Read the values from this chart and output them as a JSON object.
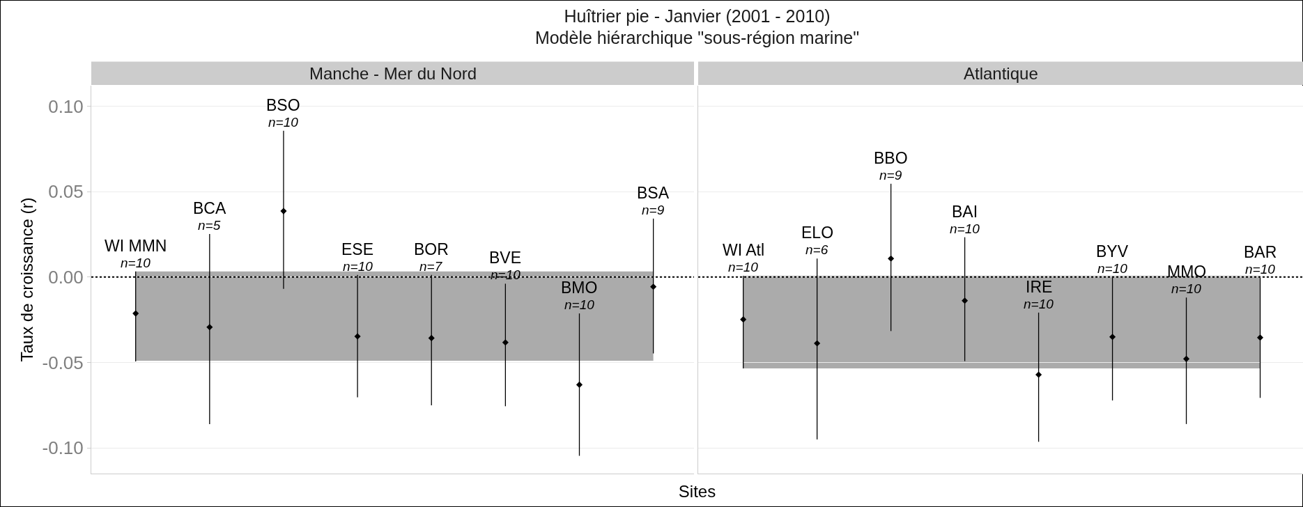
{
  "chart_data": [
    {
      "type": "scatter",
      "title": "Manche - Mer du Nord",
      "annotations": [
        "Huîtrier pie - Janvier (2001 - 2010)",
        "Modèle hiérarchique \"sous-région marine\"",
        {
          "text": "n=10",
          "x": "WI MMN",
          "y": 0.0033
        },
        {
          "text": "n=5",
          "x": "BCA",
          "y": 0.0252
        },
        {
          "text": "n=10",
          "x": "BSO",
          "y": 0.0856
        },
        {
          "text": "n=10",
          "x": "ESE",
          "y": 0.0013
        },
        {
          "text": "n=7",
          "x": "BOR",
          "y": 0.0013
        },
        {
          "text": "n=10",
          "x": "BVE",
          "y": -0.0039
        },
        {
          "text": "n=10",
          "x": "BMO",
          "y": -0.0213
        },
        {
          "text": "n=9",
          "x": "BSA",
          "y": 0.0342
        }
      ],
      "xlabel": "Sites",
      "ylabel": "Taux de croissance (r)",
      "categories": [
        "WI MMN",
        "BCA",
        "BSO",
        "ESE",
        "BOR",
        "BVE",
        "BMO",
        "BSA"
      ],
      "series": [
        {
          "color": "#000000",
          "values": [
            -0.0213,
            -0.0293,
            0.0386,
            -0.0347,
            -0.0357,
            -0.0383,
            -0.063,
            -0.0057
          ],
          "errors": [
            [
              -0.0494,
              0.0033
            ],
            [
              -0.0861,
              0.0252
            ],
            [
              -0.0069,
              0.0856
            ],
            [
              -0.0704,
              0.0013
            ],
            [
              -0.0751,
              0.0013
            ],
            [
              -0.0756,
              -0.0039
            ],
            [
              -0.1046,
              -0.0213
            ],
            [
              -0.0447,
              0.0342
            ]
          ]
        }
      ],
      "marker": "diamond",
      "ylim": [
        -0.115,
        0.112
      ],
      "yticks": [
        {
          "value": -0.1,
          "label": "-0.10"
        },
        {
          "value": -0.05,
          "label": "-0.05"
        },
        {
          "value": 0,
          "label": "0.00"
        },
        {
          "value": 0.05,
          "label": "0.05"
        },
        {
          "value": 0.1,
          "label": "0.10"
        }
      ],
      "grid": "y",
      "tick_labels": "y",
      "ref_lines": [
        {
          "axis": "y",
          "value": 0,
          "line_style": "dotted",
          "color": "#000000"
        }
      ],
      "bands": [
        {
          "axis": "y",
          "from": -0.049,
          "to": 0.0033,
          "color": "#ababab"
        }
      ]
    },
    {
      "type": "scatter",
      "title": "Atlantique",
      "annotations": [
        {
          "text": "n=10",
          "x": "WI Atl",
          "y": 0.0007
        },
        {
          "text": "n=6",
          "x": "ELO",
          "y": 0.0108
        },
        {
          "text": "n=9",
          "x": "BBO",
          "y": 0.0546
        },
        {
          "text": "n=10",
          "x": "BAI",
          "y": 0.0233
        },
        {
          "text": "n=10",
          "x": "IRE",
          "y": -0.0208
        },
        {
          "text": "n=10",
          "x": "BYV",
          "y": 0.0
        },
        {
          "text": "n=10",
          "x": "MMO",
          "y": -0.012
        },
        {
          "text": "n=10",
          "x": "BAR",
          "y": -0.0005
        }
      ],
      "categories": [
        "WI Atl",
        "ELO",
        "BBO",
        "BAI",
        "IRE",
        "BYV",
        "MMO",
        "BAR"
      ],
      "series": [
        {
          "color": "#000000",
          "values": [
            -0.0248,
            -0.0388,
            0.0108,
            -0.0138,
            -0.0571,
            -0.035,
            -0.0479,
            -0.0354
          ],
          "errors": [
            [
              -0.0535,
              0.0007
            ],
            [
              -0.095,
              0.0108
            ],
            [
              -0.0316,
              0.0546
            ],
            [
              -0.0492,
              0.0233
            ],
            [
              -0.0964,
              -0.0208
            ],
            [
              -0.0722,
              0.0
            ],
            [
              -0.086,
              -0.012
            ],
            [
              -0.0707,
              -0.0005
            ]
          ]
        }
      ],
      "marker": "diamond",
      "ylim": [
        -0.115,
        0.112
      ],
      "yticks": [
        {
          "value": -0.1,
          "label": null
        },
        {
          "value": -0.05,
          "label": null
        },
        {
          "value": 0,
          "label": null
        },
        {
          "value": 0.05,
          "label": null
        },
        {
          "value": 0.1,
          "label": null
        }
      ],
      "grid": "y",
      "tick_labels": false,
      "ref_lines": [
        {
          "axis": "y",
          "value": 0,
          "line_style": "dotted",
          "color": "#000000"
        }
      ],
      "bands": [
        {
          "axis": "y",
          "from": -0.0535,
          "to": 0.0007,
          "color": "#ababab"
        }
      ]
    }
  ]
}
